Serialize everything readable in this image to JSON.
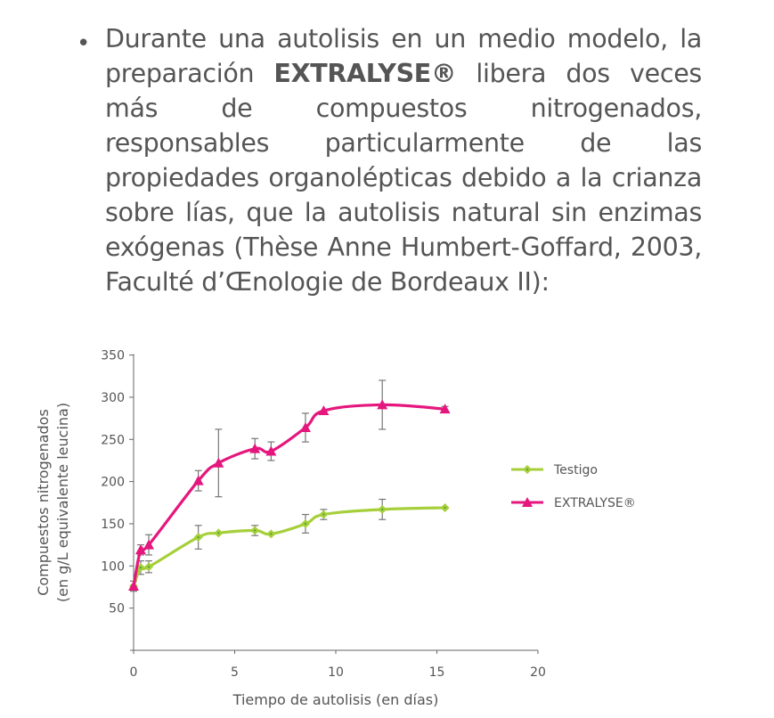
{
  "paragraph": {
    "bullet": "•",
    "before_brand": "Durante una autolisis en un medio modelo, la preparación ",
    "brand": "EXTRALYSE®",
    "after_brand": " libera dos veces más de compuestos nitrogenados, responsables particularmente de las propiedades organolépticas debido a la crianza sobre lías, que la autolisis natural sin enzimas exógenas (Thèse Anne Humbert-Goffard, 2003, Faculté d’Œnologie de Bordeaux II):"
  },
  "chart_data": {
    "type": "line",
    "title": "",
    "xlabel": "Tiempo de autolisis (en días)",
    "ylabel_line1": "Compuestos nitrogenados",
    "ylabel_line2": "(en g/L equivalente leucina)",
    "xlim": [
      0,
      20
    ],
    "ylim": [
      0,
      350
    ],
    "x_ticks": [
      "0",
      "5",
      "10",
      "15",
      "20"
    ],
    "y_ticks": [
      "50",
      "100",
      "150",
      "200",
      "250",
      "300",
      "350"
    ],
    "grid": false,
    "legend_position": "right",
    "series": [
      {
        "name": "Testigo",
        "color": "#a6cf3a",
        "marker": "diamond",
        "x": [
          0,
          0.35,
          0.75,
          3.2,
          4.2,
          6.0,
          6.8,
          8.5,
          9.4,
          12.3,
          15.4
        ],
        "values": [
          76,
          98,
          99,
          134,
          139,
          142,
          138,
          150,
          161,
          167,
          169
        ],
        "error": [
          0,
          8,
          7,
          14,
          0,
          6,
          0,
          11,
          6,
          12,
          0
        ]
      },
      {
        "name": "EXTRALYSE®",
        "color": "#e5177e",
        "marker": "triangle",
        "x": [
          0,
          0.35,
          0.75,
          3.2,
          4.2,
          6.0,
          6.8,
          8.5,
          9.4,
          12.3,
          15.4
        ],
        "values": [
          76,
          119,
          125,
          201,
          222,
          239,
          236,
          264,
          284,
          291,
          286
        ],
        "error": [
          6,
          6,
          12,
          12,
          40,
          12,
          11,
          17,
          0,
          29,
          3
        ]
      }
    ]
  }
}
